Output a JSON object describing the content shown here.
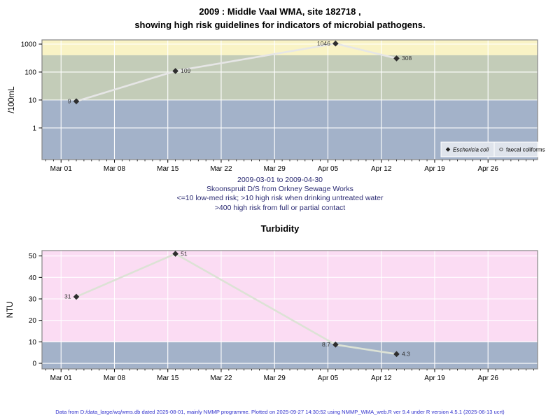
{
  "header": {
    "title_line1": "2009 : Middle Vaal WMA, site 182718 ,",
    "title_line2": "showing high risk guidelines for indicators of microbial pathogens."
  },
  "subtitle": {
    "line1": "2009-03-01 to 2009-04-30",
    "line2": "Skoonspruit D/S from Orkney Sewage Works",
    "line3": "<=10 low-med risk; >10 high risk when drinking untreated water",
    "line4": ">400 high risk from full or partial contact"
  },
  "footer_text": "Data from D:/data_large/wq/wms.db dated 2025-08-01, mainly NMMP programme. Plotted on 2025-09-27 14:30:52 using NMMP_WMA_web.R ver 9.4 under R version 4.5.1 (2025-06-13 ucrt)",
  "colors": {
    "band_high_contact_yellow": "#f9f3c5",
    "band_high_drinking_green": "#c3ccb8",
    "band_low_med_blue": "#a3b2c9",
    "band_turbidity_pink": "#fbdcf3",
    "gridline": "#ffffff",
    "plot_border": "#878787",
    "legend_background": "#dfe4ec",
    "subtitle_text": "#2a2a72",
    "footer_text": "#3030cc"
  },
  "chart_data": [
    {
      "type": "line",
      "title": "",
      "y_axis": {
        "label": "/100mL",
        "scale": "log",
        "lim": [
          0.074,
          1413
        ],
        "ticks": [
          1,
          10,
          100,
          1000
        ]
      },
      "x_axis": {
        "epoch": "2009-03-01",
        "domain_days": [
          -2.5,
          62.5
        ],
        "tick_days": [
          0,
          7,
          14,
          21,
          28,
          35,
          42,
          49,
          56
        ],
        "tick_labels": [
          "Mar 01",
          "Mar 08",
          "Mar 15",
          "Mar 22",
          "Mar 29",
          "Apr 05",
          "Apr 12",
          "Apr 19",
          "Apr 26"
        ],
        "minor_ticks_daily": true
      },
      "bands": [
        {
          "y_from": 400,
          "y_to": null,
          "threshold": ">400",
          "color": "#f9f3c5"
        },
        {
          "y_from": 10,
          "y_to": 400,
          "threshold": ">10",
          "color": "#c3ccb8"
        },
        {
          "y_from": null,
          "y_to": 10,
          "threshold": "<=10",
          "color": "#a3b2c9"
        }
      ],
      "series": [
        {
          "name": "Eschericia coli",
          "marker": "filled-diamond",
          "line_color": "#e6e6e6",
          "point_color": "#2e2e2e",
          "points": [
            {
              "day": 2,
              "date": "2009-03-03",
              "value": 9,
              "label": "9",
              "label_side": "left"
            },
            {
              "day": 15,
              "date": "2009-03-16",
              "value": 109,
              "label": "109",
              "label_side": "right"
            },
            {
              "day": 36,
              "date": "2009-04-06",
              "value": 1046,
              "label": "1046",
              "label_side": "left"
            },
            {
              "day": 44,
              "date": "2009-04-14",
              "value": 308,
              "label": "308",
              "label_side": "right"
            }
          ]
        },
        {
          "name": "faecal coliforms",
          "marker": "open-circle",
          "line_color": "#e6e6e6",
          "point_color": "#555555",
          "points": []
        }
      ],
      "legend": {
        "position": "bottom-right",
        "entries": [
          {
            "marker": "filled-diamond",
            "label": "Eschericia coli",
            "italic": true
          },
          {
            "marker": "open-circle",
            "label": "faecal coliforms",
            "italic": false
          }
        ]
      }
    },
    {
      "type": "line",
      "title": "Turbidity",
      "y_axis": {
        "label": "NTU",
        "scale": "linear",
        "lim": [
          -2.6,
          52.5
        ],
        "ticks": [
          0,
          10,
          20,
          30,
          40,
          50
        ]
      },
      "x_axis": {
        "epoch": "2009-03-01",
        "domain_days": [
          -2.5,
          62.5
        ],
        "tick_days": [
          0,
          7,
          14,
          21,
          28,
          35,
          42,
          49,
          56
        ],
        "tick_labels": [
          "Mar 01",
          "Mar 08",
          "Mar 15",
          "Mar 22",
          "Mar 29",
          "Apr 05",
          "Apr 12",
          "Apr 19",
          "Apr 26"
        ],
        "minor_ticks_daily": true
      },
      "bands": [
        {
          "y_from": 10,
          "y_to": null,
          "threshold": ">10",
          "color": "#fbdcf3"
        },
        {
          "y_from": null,
          "y_to": 10,
          "threshold": "<=10",
          "color": "#a3b2c9"
        }
      ],
      "series": [
        {
          "name": "Turbidity",
          "marker": "filled-diamond",
          "line_color": "#dce2d5",
          "point_color": "#2e2e2e",
          "points": [
            {
              "day": 2,
              "date": "2009-03-03",
              "value": 31,
              "label": "31",
              "label_side": "left"
            },
            {
              "day": 15,
              "date": "2009-03-16",
              "value": 51,
              "label": "51",
              "label_side": "right"
            },
            {
              "day": 36,
              "date": "2009-04-06",
              "value": 8.7,
              "label": "8.7",
              "label_side": "left"
            },
            {
              "day": 44,
              "date": "2009-04-14",
              "value": 4.3,
              "label": "4.3",
              "label_side": "right"
            }
          ]
        }
      ],
      "legend": null
    }
  ]
}
